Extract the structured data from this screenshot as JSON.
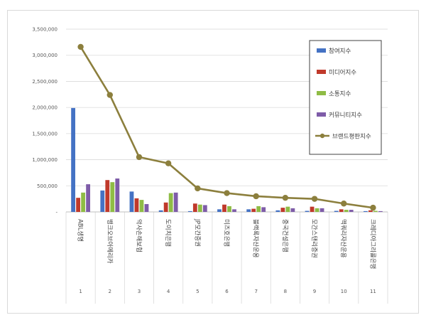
{
  "chart_data": {
    "type": "bar",
    "title": "",
    "xlabel": "",
    "ylabel": "",
    "ylim": [
      0,
      3500000
    ],
    "yticks": [
      {
        "value": 0,
        "label": "-"
      },
      {
        "value": 500000,
        "label": "500,000"
      },
      {
        "value": 1000000,
        "label": "1,000,000"
      },
      {
        "value": 1500000,
        "label": "1,500,000"
      },
      {
        "value": 2000000,
        "label": "2,000,000"
      },
      {
        "value": 2500000,
        "label": "2,500,000"
      },
      {
        "value": 3000000,
        "label": "3,000,000"
      },
      {
        "value": 3500000,
        "label": "3,500,000"
      }
    ],
    "grid": true,
    "legend_position": "right",
    "categories": [
      "ABL생명",
      "뱅크오브아메리카",
      "악사손해보험",
      "도이치은행",
      "JP모간증권",
      "미즈호은행",
      "블랙록자산운용",
      "중국건설은행",
      "모간스탠리증권",
      "맥쿼리자산운용",
      "크레디아그리콜은행"
    ],
    "ranks": [
      "1",
      "2",
      "3",
      "4",
      "5",
      "6",
      "7",
      "8",
      "9",
      "10",
      "11"
    ],
    "series": [
      {
        "name": "참여지수",
        "type": "bar",
        "color": "#4472c4",
        "values": [
          1990000,
          410000,
          390000,
          30000,
          15000,
          50000,
          50000,
          30000,
          20000,
          20000,
          15000
        ]
      },
      {
        "name": "미디어지수",
        "type": "bar",
        "color": "#c0392b",
        "values": [
          270000,
          610000,
          260000,
          180000,
          160000,
          140000,
          60000,
          80000,
          100000,
          50000,
          30000
        ]
      },
      {
        "name": "소통지수",
        "type": "bar",
        "color": "#8fbc45",
        "values": [
          370000,
          570000,
          230000,
          360000,
          140000,
          110000,
          110000,
          100000,
          70000,
          40000,
          20000
        ]
      },
      {
        "name": "커뮤니티지수",
        "type": "bar",
        "color": "#7e5ca8",
        "values": [
          530000,
          640000,
          150000,
          370000,
          130000,
          50000,
          90000,
          70000,
          70000,
          40000,
          15000
        ]
      },
      {
        "name": "브랜드평판지수",
        "type": "line",
        "color": "#8c7f3d",
        "values": [
          3160000,
          2240000,
          1050000,
          930000,
          450000,
          360000,
          300000,
          270000,
          250000,
          160000,
          80000
        ]
      }
    ]
  }
}
